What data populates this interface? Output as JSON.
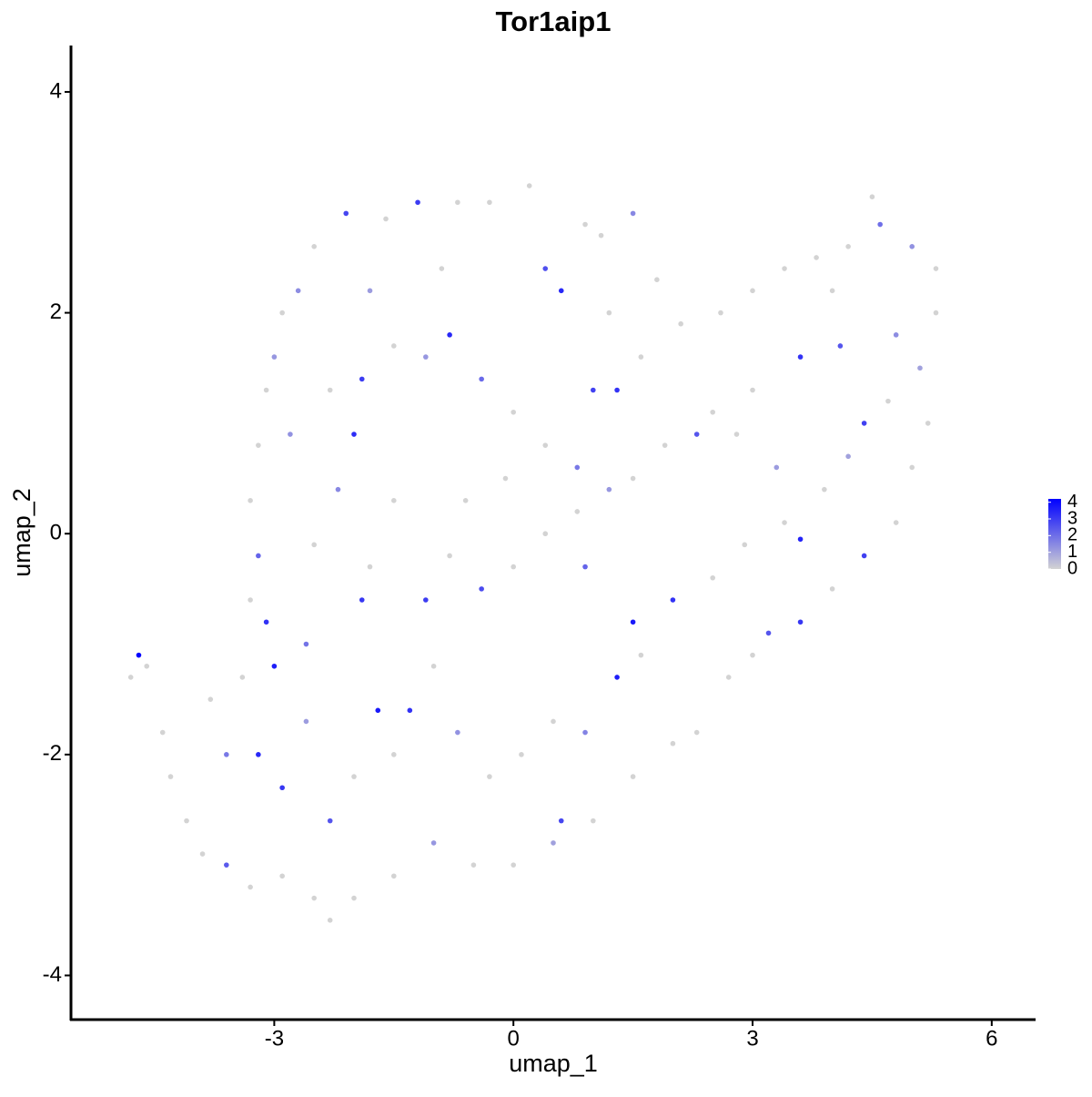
{
  "chart_data": {
    "type": "scatter",
    "title": "Tor1aip1",
    "x_label": "umap_1",
    "y_label": "umap_2",
    "x": [
      -4.7,
      -4.8,
      -4.6,
      -4.4,
      -4.3,
      -4.1,
      -3.9,
      -3.6,
      -3.3,
      -2.9,
      -2.5,
      -2.3,
      -2.0,
      -1.5,
      -1.0,
      -0.5,
      0.0,
      0.5,
      1.0,
      0.6,
      1.5,
      2.0,
      2.3,
      2.7,
      3.0,
      3.2,
      3.6,
      4.0,
      4.4,
      4.8,
      5.0,
      5.2,
      5.1,
      5.3,
      5.3,
      5.0,
      4.6,
      4.5,
      4.2,
      3.8,
      3.4,
      3.0,
      2.6,
      2.1,
      1.6,
      1.3,
      1.0,
      1.2,
      0.6,
      0.4,
      1.1,
      1.5,
      0.9,
      0.2,
      -0.3,
      -0.7,
      -1.2,
      -1.6,
      -2.1,
      -2.5,
      -2.7,
      -2.9,
      -3.0,
      -3.1,
      -3.2,
      -3.3,
      -3.2,
      -3.3,
      -3.1,
      -3.0,
      -3.4,
      -3.8,
      -3.6,
      -3.2,
      -2.9,
      -2.6,
      -2.3,
      -2.0,
      -1.7,
      -1.5,
      -1.3,
      -1.0,
      -0.7,
      -0.3,
      0.1,
      0.5,
      0.9,
      1.3,
      1.6,
      1.5,
      2.0,
      2.5,
      2.9,
      3.4,
      3.6,
      3.9,
      4.2,
      4.4,
      4.7,
      4.1,
      3.6,
      3.0,
      2.5,
      2.3,
      1.9,
      1.5,
      1.2,
      0.8,
      0.4,
      0.0,
      -0.4,
      -0.8,
      -1.1,
      -1.5,
      -1.8,
      -2.2,
      -2.5,
      -2.8,
      -2.3,
      -1.9,
      -1.5,
      -1.1,
      -0.8,
      -0.4,
      0.0,
      0.4,
      0.8,
      0.9,
      -0.1,
      -0.6,
      -2.0,
      -2.6,
      -1.9,
      2.8,
      3.3,
      4.8,
      4.0,
      1.8,
      -0.9,
      -1.8
    ],
    "y": [
      -1.1,
      -1.3,
      -1.2,
      -1.8,
      -2.2,
      -2.6,
      -2.9,
      -3.0,
      -3.2,
      -3.1,
      -3.3,
      -3.5,
      -3.3,
      -3.1,
      -2.8,
      -3.0,
      -3.0,
      -2.8,
      -2.6,
      -2.6,
      -2.2,
      -1.9,
      -1.8,
      -1.3,
      -1.1,
      -0.9,
      -0.8,
      -0.5,
      -0.2,
      0.1,
      0.6,
      1.0,
      1.5,
      2.0,
      2.4,
      2.6,
      2.8,
      3.05,
      2.6,
      2.5,
      2.4,
      2.2,
      2.0,
      1.9,
      1.6,
      1.3,
      1.3,
      2.0,
      2.2,
      2.4,
      2.7,
      2.9,
      2.8,
      3.15,
      3.0,
      3.0,
      3.0,
      2.85,
      2.9,
      2.6,
      2.2,
      2.0,
      1.6,
      1.3,
      0.8,
      0.3,
      -0.2,
      -0.6,
      -0.8,
      -1.2,
      -1.3,
      -1.5,
      -2.0,
      -2.0,
      -2.3,
      -1.7,
      -2.6,
      -2.2,
      -1.6,
      -2.0,
      -1.6,
      -1.2,
      -1.8,
      -2.2,
      -2.0,
      -1.7,
      -1.8,
      -1.3,
      -1.1,
      -0.8,
      -0.6,
      -0.4,
      -0.1,
      0.1,
      -0.05,
      0.4,
      0.7,
      1.0,
      1.2,
      1.7,
      1.6,
      1.3,
      1.1,
      0.9,
      0.8,
      0.5,
      0.4,
      0.2,
      0.0,
      -0.3,
      -0.5,
      -0.2,
      -0.6,
      0.3,
      -0.3,
      0.4,
      -0.1,
      0.9,
      1.3,
      1.4,
      1.7,
      1.6,
      1.8,
      1.4,
      1.1,
      0.8,
      0.6,
      -0.3,
      0.5,
      0.3,
      0.9,
      -1.0,
      -0.6,
      0.9,
      0.6,
      1.8,
      2.2,
      2.3,
      2.4,
      2.2
    ],
    "values": [
      4.2,
      0,
      0,
      0,
      0,
      0,
      0,
      2.4,
      0,
      0,
      0,
      0,
      0,
      0,
      1.2,
      0,
      0,
      1,
      0,
      2.8,
      0,
      0,
      0,
      0,
      0,
      2.5,
      3.1,
      0,
      2.9,
      0,
      0,
      0,
      1,
      0,
      0,
      1.3,
      2,
      0,
      0,
      0,
      0,
      0,
      0,
      0,
      0,
      3.2,
      2.9,
      0,
      3.4,
      2.6,
      0,
      1.5,
      0,
      0,
      0,
      0,
      3.0,
      0,
      2.8,
      0,
      1.4,
      0,
      1.2,
      0,
      0,
      0,
      2.2,
      0,
      3.2,
      3.6,
      0,
      0,
      1.8,
      3.4,
      3.1,
      1.1,
      2.5,
      0,
      3.7,
      0,
      3.2,
      0,
      1.3,
      0,
      0,
      0,
      1.6,
      3.6,
      0,
      3.7,
      3.2,
      0,
      0,
      0,
      3.5,
      0,
      1,
      2.9,
      0,
      2.5,
      3.2,
      0,
      0,
      2.5,
      0,
      0,
      1.2,
      0,
      0,
      0,
      2.7,
      0,
      3.0,
      0,
      0,
      1.5,
      0,
      1.3,
      0,
      3.0,
      0,
      1.2,
      3.4,
      2.1,
      0,
      0,
      1.8,
      2.2,
      0,
      0,
      3.3,
      1.9,
      3.1,
      0,
      1.1,
      1.4,
      0,
      0,
      0,
      1.1
    ],
    "xlim": [
      -5.55,
      6.55
    ],
    "ylim": [
      -4.4,
      4.42
    ],
    "xticks": [
      -3,
      0,
      3,
      6
    ],
    "yticks": [
      -4,
      -2,
      0,
      2,
      4
    ],
    "colorbar": {
      "lim": [
        0,
        4.2
      ],
      "ticks": [
        0,
        1,
        2,
        3,
        4
      ],
      "low_color": "#d3d3d3",
      "high_color": "#0000ff"
    }
  }
}
